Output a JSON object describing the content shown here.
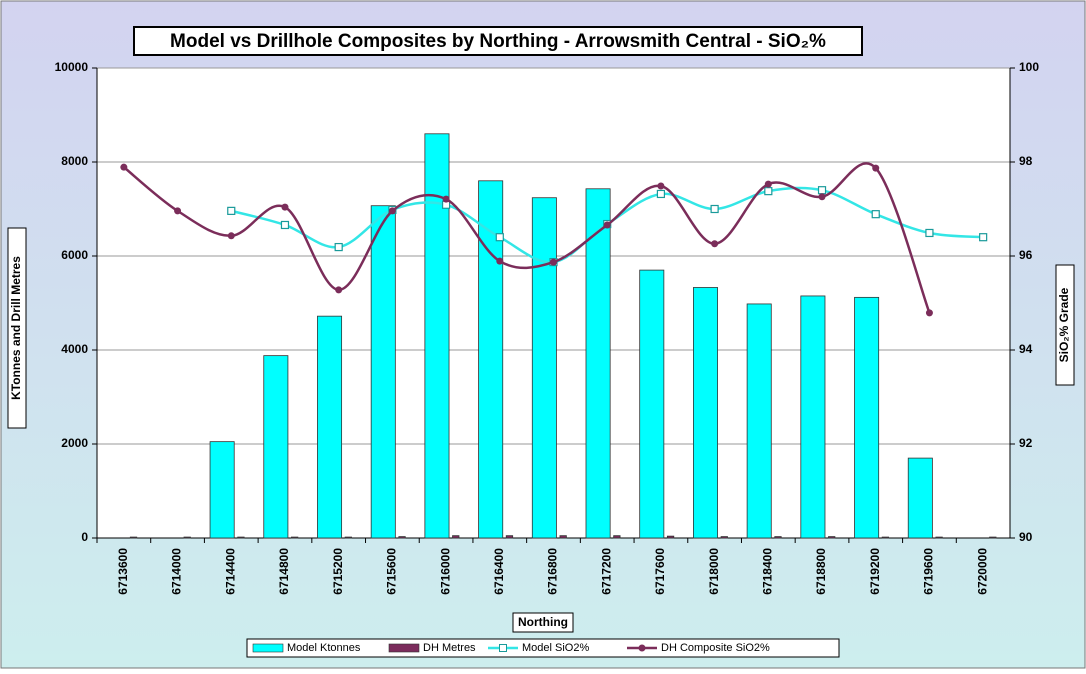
{
  "chart_data": {
    "type": "bar_line",
    "title": "Model vs Drillhole Composites by Northing - Arrowsmith Central - SiO₂%",
    "x_label": "Northing",
    "y_label": "KTonnes and Drill Metres",
    "y2_label": "SiO₂% Grade",
    "categories": [
      "6713600",
      "6714000",
      "6714400",
      "6714800",
      "6715200",
      "6715600",
      "6716000",
      "6716400",
      "6716800",
      "6717200",
      "6717600",
      "6718000",
      "6718400",
      "6718800",
      "6719200",
      "6719600",
      "6720000"
    ],
    "series": [
      {
        "name": "Model Ktonnes",
        "kind": "bar",
        "color": "#00ffff",
        "values": [
          0,
          0,
          2050,
          3880,
          4720,
          7070,
          8600,
          7600,
          7240,
          7430,
          5700,
          5330,
          4980,
          5150,
          5120,
          1700,
          0
        ]
      },
      {
        "name": "DH Metres",
        "kind": "bar",
        "color": "#7b2c5c",
        "values": [
          20,
          20,
          20,
          20,
          20,
          30,
          50,
          50,
          50,
          50,
          40,
          30,
          30,
          30,
          20,
          20,
          20
        ]
      },
      {
        "name": "Model SiO2%",
        "kind": "line",
        "axis": "y2",
        "color": "#33e6e6",
        "marker": "square",
        "values": [
          null,
          null,
          96.96,
          96.66,
          96.19,
          96.98,
          97.09,
          96.4,
          95.87,
          96.68,
          97.32,
          97.0,
          97.38,
          97.4,
          96.89,
          96.49,
          96.4
        ]
      },
      {
        "name": "DH Composite SiO2%",
        "kind": "line",
        "axis": "y2",
        "color": "#7b2d5a",
        "marker": "circle",
        "values": [
          97.89,
          96.96,
          96.43,
          97.04,
          95.28,
          96.96,
          97.21,
          95.89,
          95.87,
          96.66,
          97.49,
          96.26,
          97.53,
          97.26,
          97.87,
          94.79,
          null
        ]
      }
    ],
    "ylim": [
      0,
      10000
    ],
    "yticks": [
      0,
      2000,
      4000,
      6000,
      8000,
      10000
    ],
    "y2lim": [
      90,
      100
    ],
    "y2ticks": [
      90,
      92,
      94,
      96,
      98,
      100
    ],
    "grid": true,
    "legend": "bottom"
  }
}
